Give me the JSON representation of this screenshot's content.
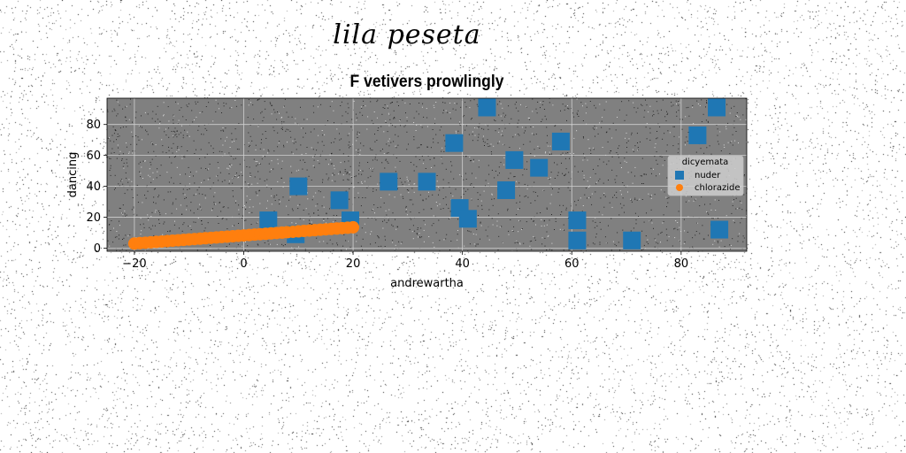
{
  "suptitle": "lila peseta",
  "chart_data": {
    "type": "scatter",
    "title": "F vetivers prowlingly",
    "xlabel": "andrewartha",
    "ylabel": "dancing",
    "xlim": [
      -25,
      92
    ],
    "ylim": [
      -2,
      97
    ],
    "xticks": [
      -20,
      0,
      20,
      40,
      60,
      80
    ],
    "yticks": [
      0,
      20,
      40,
      60,
      80
    ],
    "grid": true,
    "legend": {
      "title": "dicyemata",
      "placement": "right"
    },
    "colors": {
      "plot_bg": "#808080",
      "nuder": "#1f77b4",
      "chlorazide": "#ff7f0e"
    },
    "series": [
      {
        "name": "nuder",
        "marker": "square",
        "points": [
          [
            4.5,
            18
          ],
          [
            9.5,
            9
          ],
          [
            10,
            40
          ],
          [
            17.5,
            31
          ],
          [
            19.5,
            18
          ],
          [
            26.5,
            43
          ],
          [
            33.5,
            43
          ],
          [
            38.5,
            68
          ],
          [
            39.5,
            26
          ],
          [
            41,
            19
          ],
          [
            44.5,
            91
          ],
          [
            48,
            37.5
          ],
          [
            49.5,
            57
          ],
          [
            54,
            52
          ],
          [
            58,
            69
          ],
          [
            61,
            18
          ],
          [
            61,
            5
          ],
          [
            71,
            5
          ],
          [
            83,
            73
          ],
          [
            86.5,
            91
          ],
          [
            87,
            12
          ]
        ]
      },
      {
        "name": "chlorazide",
        "marker": "circle",
        "x_range": [
          -20,
          20
        ],
        "y_range": [
          3,
          13.5
        ],
        "count": 41
      }
    ]
  }
}
